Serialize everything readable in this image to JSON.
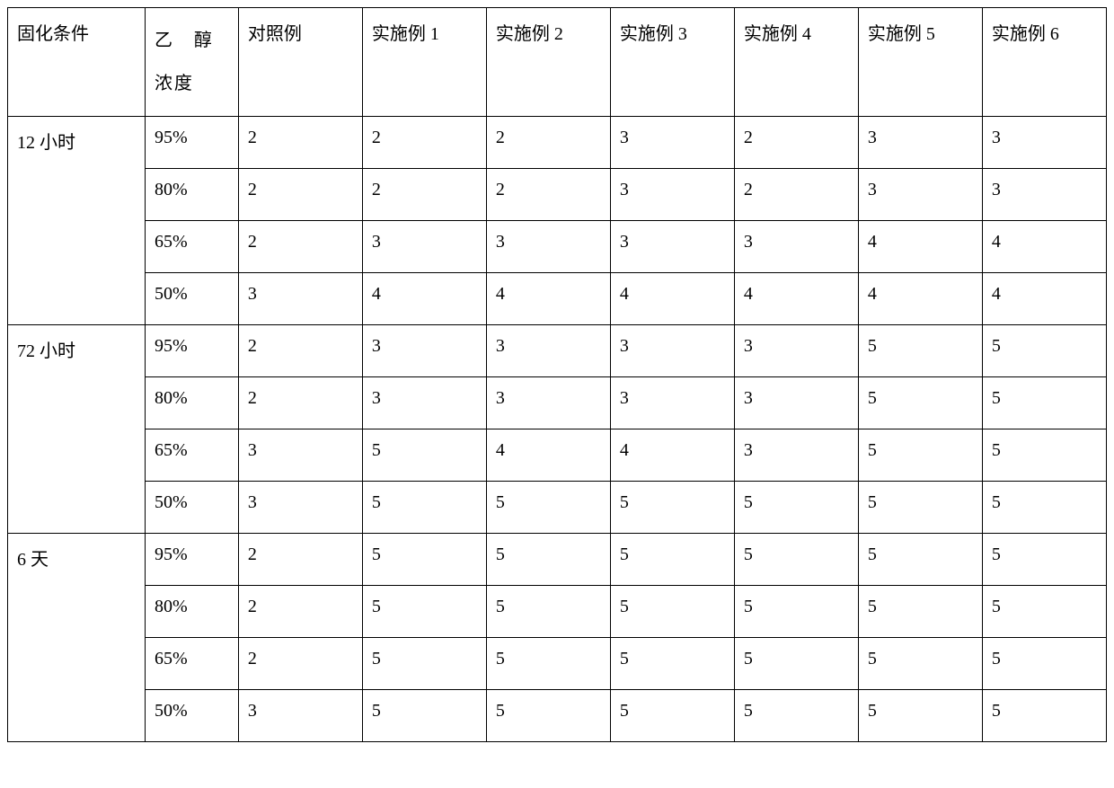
{
  "headers": {
    "col0": "固化条件",
    "col1_line1": "乙　醇",
    "col1_line2": "浓度",
    "col2": "对照例",
    "col3": "实施例 1",
    "col4": "实施例 2",
    "col5": "实施例 3",
    "col6": "实施例 4",
    "col7": "实施例 5",
    "col8": "实施例 6"
  },
  "groups": [
    {
      "label": "12 小时",
      "rows": [
        {
          "conc": "95%",
          "v": [
            "2",
            "2",
            "2",
            "3",
            "2",
            "3",
            "3"
          ]
        },
        {
          "conc": "80%",
          "v": [
            "2",
            "2",
            "2",
            "3",
            "2",
            "3",
            "3"
          ]
        },
        {
          "conc": "65%",
          "v": [
            "2",
            "3",
            "3",
            "3",
            "3",
            "4",
            "4"
          ]
        },
        {
          "conc": "50%",
          "v": [
            "3",
            "4",
            "4",
            "4",
            "4",
            "4",
            "4"
          ]
        }
      ]
    },
    {
      "label": "72 小时",
      "rows": [
        {
          "conc": "95%",
          "v": [
            "2",
            "3",
            "3",
            "3",
            "3",
            "5",
            "5"
          ]
        },
        {
          "conc": "80%",
          "v": [
            "2",
            "3",
            "3",
            "3",
            "3",
            "5",
            "5"
          ]
        },
        {
          "conc": "65%",
          "v": [
            "3",
            "5",
            "4",
            "4",
            "3",
            "5",
            "5"
          ]
        },
        {
          "conc": "50%",
          "v": [
            "3",
            "5",
            "5",
            "5",
            "5",
            "5",
            "5"
          ]
        }
      ]
    },
    {
      "label": "6 天",
      "rows": [
        {
          "conc": "95%",
          "v": [
            "2",
            "5",
            "5",
            "5",
            "5",
            "5",
            "5"
          ]
        },
        {
          "conc": "80%",
          "v": [
            "2",
            "5",
            "5",
            "5",
            "5",
            "5",
            "5"
          ]
        },
        {
          "conc": "65%",
          "v": [
            "2",
            "5",
            "5",
            "5",
            "5",
            "5",
            "5"
          ]
        },
        {
          "conc": "50%",
          "v": [
            "3",
            "5",
            "5",
            "5",
            "5",
            "5",
            "5"
          ]
        }
      ]
    }
  ]
}
